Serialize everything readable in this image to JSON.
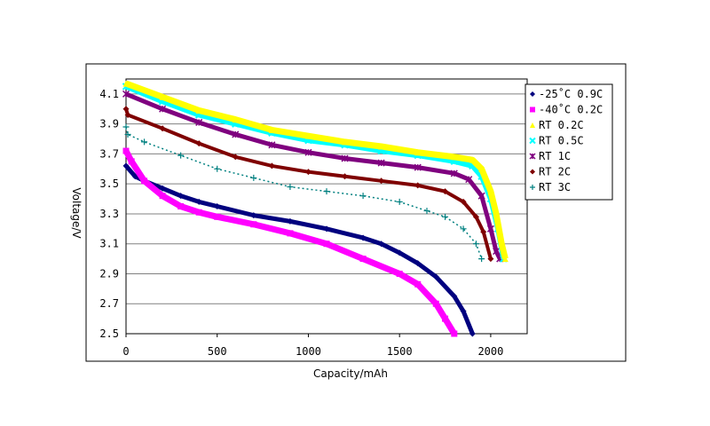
{
  "chart_data": {
    "type": "scatter",
    "title": "",
    "xlabel": "Capacity/mAh",
    "ylabel": "Voltage/V",
    "xlim": [
      0,
      2200
    ],
    "ylim": [
      2.5,
      4.2
    ],
    "xticks": [
      "0",
      "500",
      "1000",
      "1500",
      "2000"
    ],
    "yticks": [
      "2.5",
      "2.7",
      "2.9",
      "3.1",
      "3.3",
      "3.5",
      "3.7",
      "3.9",
      "4.1"
    ],
    "grid": "horizontal",
    "legend_position": "right",
    "series": [
      {
        "name": "-25˚C 0.9C",
        "color": "#00007f",
        "marker": "diamond",
        "x": [
          0,
          50,
          100,
          200,
          300,
          400,
          500,
          700,
          900,
          1100,
          1300,
          1400,
          1500,
          1600,
          1700,
          1800,
          1850,
          1900
        ],
        "y": [
          3.62,
          3.55,
          3.52,
          3.47,
          3.42,
          3.38,
          3.35,
          3.29,
          3.25,
          3.2,
          3.14,
          3.1,
          3.04,
          2.97,
          2.88,
          2.75,
          2.65,
          2.5
        ]
      },
      {
        "name": "-40˚C 0.2C",
        "color": "#ff00ff",
        "marker": "square",
        "x": [
          0,
          30,
          100,
          200,
          300,
          400,
          500,
          700,
          900,
          1100,
          1300,
          1500,
          1600,
          1700,
          1750,
          1800
        ],
        "y": [
          3.72,
          3.65,
          3.52,
          3.42,
          3.35,
          3.31,
          3.28,
          3.23,
          3.17,
          3.1,
          3.0,
          2.9,
          2.83,
          2.7,
          2.6,
          2.5
        ]
      },
      {
        "name": "RT 0.2C",
        "color": "#ffff00",
        "marker": "triangle",
        "x": [
          0,
          200,
          400,
          600,
          800,
          1000,
          1200,
          1400,
          1600,
          1800,
          1900,
          1950,
          2000,
          2030,
          2060,
          2080
        ],
        "y": [
          4.17,
          4.08,
          3.99,
          3.93,
          3.86,
          3.82,
          3.78,
          3.75,
          3.71,
          3.68,
          3.66,
          3.6,
          3.45,
          3.3,
          3.1,
          3.0
        ]
      },
      {
        "name": "RT 0.5C",
        "color": "#00ffff",
        "marker": "x",
        "x": [
          0,
          200,
          400,
          600,
          800,
          1000,
          1200,
          1400,
          1600,
          1800,
          1900,
          1950,
          2000,
          2040,
          2070
        ],
        "y": [
          4.15,
          4.05,
          3.96,
          3.9,
          3.84,
          3.79,
          3.76,
          3.72,
          3.69,
          3.65,
          3.62,
          3.55,
          3.4,
          3.2,
          3.0
        ]
      },
      {
        "name": "RT 1C",
        "color": "#7f007f",
        "marker": "star",
        "x": [
          0,
          200,
          400,
          600,
          800,
          1000,
          1200,
          1400,
          1600,
          1800,
          1880,
          1950,
          2000,
          2030,
          2050
        ],
        "y": [
          4.1,
          4.0,
          3.91,
          3.83,
          3.76,
          3.71,
          3.67,
          3.64,
          3.61,
          3.57,
          3.53,
          3.42,
          3.2,
          3.05,
          3.0
        ]
      },
      {
        "name": "RT 2C",
        "color": "#7f0000",
        "marker": "diamond",
        "x": [
          0,
          10,
          200,
          400,
          600,
          800,
          1000,
          1200,
          1400,
          1600,
          1750,
          1850,
          1920,
          1960,
          2000
        ],
        "y": [
          4.0,
          3.96,
          3.87,
          3.77,
          3.68,
          3.62,
          3.58,
          3.55,
          3.52,
          3.49,
          3.45,
          3.38,
          3.28,
          3.18,
          3.0
        ]
      },
      {
        "name": "RT 3C",
        "color": "#008080",
        "marker": "plus",
        "x": [
          0,
          10,
          100,
          300,
          500,
          700,
          900,
          1100,
          1300,
          1500,
          1650,
          1750,
          1850,
          1920,
          1950
        ],
        "y": [
          3.88,
          3.83,
          3.78,
          3.69,
          3.6,
          3.54,
          3.48,
          3.45,
          3.42,
          3.38,
          3.32,
          3.28,
          3.2,
          3.1,
          3.0
        ]
      }
    ]
  }
}
